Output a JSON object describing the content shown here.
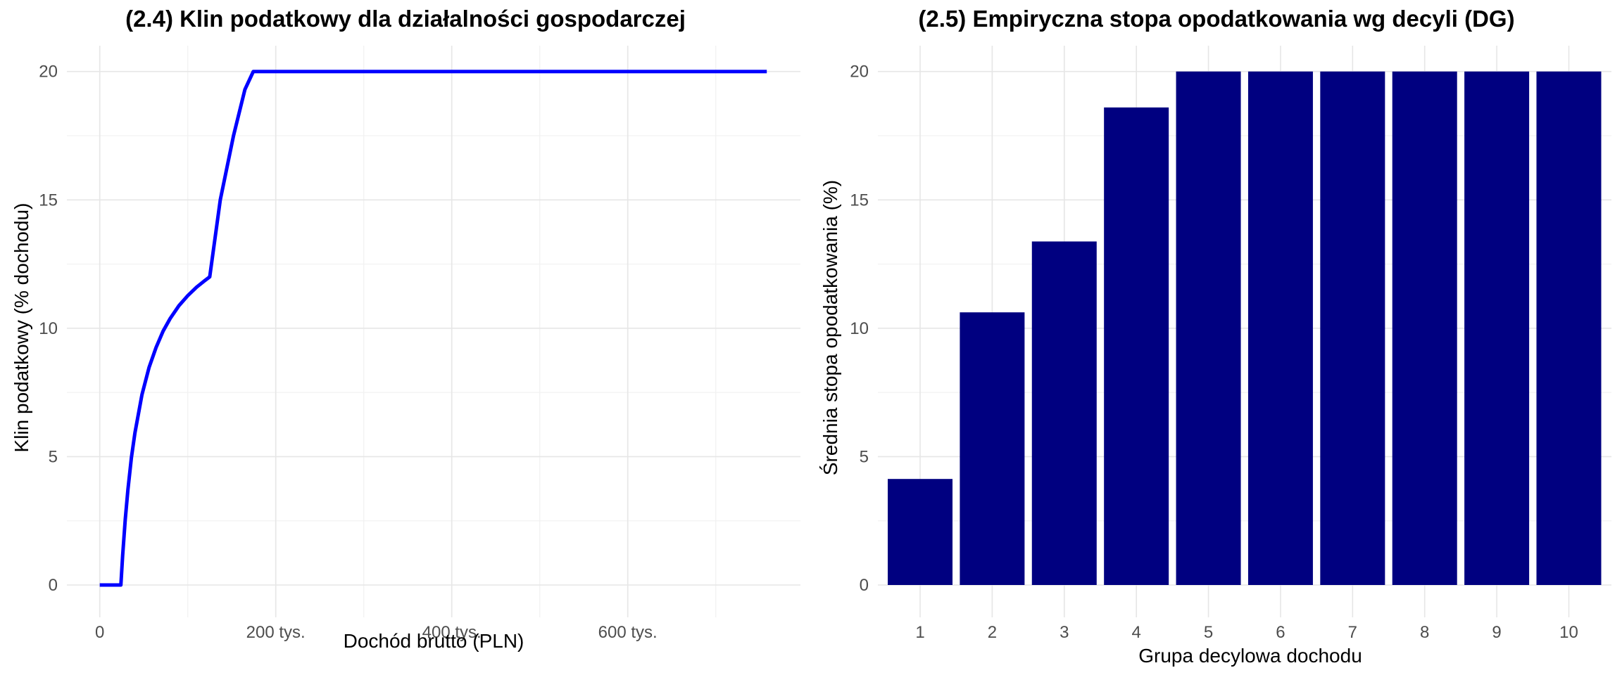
{
  "colors": {
    "line": "#0000ff",
    "bar": "#000080",
    "grid_major": "#e6e6e6",
    "grid_minor": "#f2f2f2",
    "tick_text": "#4d4d4d",
    "background": "#ffffff"
  },
  "chart_data": [
    {
      "type": "line",
      "title": "(2.4) Klin podatkowy dla działalności gospodarczej",
      "xlabel": "Dochód brutto (PLN)",
      "ylabel": "Klin podatkowy (% dochodu)",
      "x_ticks": [
        {
          "value": 0,
          "label": "0"
        },
        {
          "value": 200000,
          "label": "200 tys."
        },
        {
          "value": 400000,
          "label": "400 tys."
        },
        {
          "value": 600000,
          "label": "600 tys."
        }
      ],
      "y_ticks": [
        {
          "value": 0,
          "label": "0"
        },
        {
          "value": 5,
          "label": "5"
        },
        {
          "value": 10,
          "label": "10"
        },
        {
          "value": 15,
          "label": "15"
        },
        {
          "value": 20,
          "label": "20"
        }
      ],
      "xlim": [
        -55000,
        778000
      ],
      "ylim": [
        -1,
        21
      ],
      "grid": true,
      "legend": "none",
      "series": [
        {
          "name": "Klin podatkowy",
          "x": [
            0,
            24000,
            26000,
            29000,
            32000,
            36000,
            40000,
            48000,
            56000,
            64000,
            72000,
            80000,
            90000,
            100000,
            110000,
            118000,
            125000,
            137000,
            152000,
            165000,
            174500,
            300000,
            500000,
            758000
          ],
          "y": [
            0,
            0,
            1.14,
            2.55,
            3.71,
            4.97,
            5.93,
            7.42,
            8.47,
            9.25,
            9.89,
            10.38,
            10.88,
            11.27,
            11.6,
            11.82,
            12.0,
            15.0,
            17.5,
            19.3,
            20.0,
            20.0,
            20.0,
            20.0
          ]
        }
      ]
    },
    {
      "type": "bar",
      "title": "(2.5) Empiryczna stopa opodatkowania wg decyli (DG)",
      "xlabel": "Grupa decylowa dochodu",
      "ylabel": "Średnia stopa opodatkowania (%)",
      "categories": [
        "1",
        "2",
        "3",
        "4",
        "5",
        "6",
        "7",
        "8",
        "9",
        "10"
      ],
      "values": [
        4.13,
        10.62,
        13.38,
        18.6,
        20.0,
        20.0,
        20.0,
        20.0,
        20.0,
        20.0
      ],
      "y_ticks": [
        {
          "value": 0,
          "label": "0"
        },
        {
          "value": 5,
          "label": "5"
        },
        {
          "value": 10,
          "label": "10"
        },
        {
          "value": 15,
          "label": "15"
        },
        {
          "value": 20,
          "label": "20"
        }
      ],
      "ylim": [
        -1,
        21
      ],
      "grid": true,
      "legend": "none"
    }
  ]
}
